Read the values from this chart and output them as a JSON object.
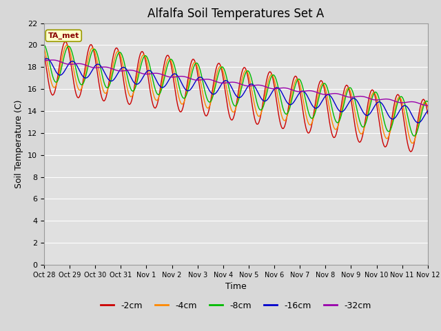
{
  "title": "Alfalfa Soil Temperatures Set A",
  "xlabel": "Time",
  "ylabel": "Soil Temperature (C)",
  "annotation": "TA_met",
  "ylim": [
    0,
    22
  ],
  "yticks": [
    0,
    2,
    4,
    6,
    8,
    10,
    12,
    14,
    16,
    18,
    20,
    22
  ],
  "xtick_labels": [
    "Oct 28",
    "Oct 29",
    "Oct 30",
    "Oct 31",
    "Nov 1",
    "Nov 2",
    "Nov 3",
    "Nov 4",
    "Nov 5",
    "Nov 6",
    "Nov 7",
    "Nov 8",
    "Nov 9",
    "Nov 10",
    "Nov 11",
    "Nov 12"
  ],
  "series_colors": [
    "#cc0000",
    "#ff8800",
    "#00bb00",
    "#0000cc",
    "#9900aa"
  ],
  "series_labels": [
    "-2cm",
    "-4cm",
    "-8cm",
    "-16cm",
    "-32cm"
  ],
  "background_color": "#d8d8d8",
  "plot_background": "#e0e0e0",
  "grid_color": "#ffffff",
  "title_fontsize": 12,
  "axis_fontsize": 9,
  "tick_fontsize": 8
}
